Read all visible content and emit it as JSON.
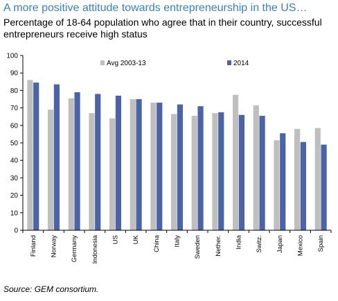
{
  "title": "A more positive attitude towards entrepreneurship in the US…",
  "subtitle": "Percentage of 18-64 population who agree that in their country, successful entrepreneurs receive high status",
  "source": "Source:  GEM consortium.",
  "colors": {
    "avg": "#bfbfbf",
    "y2014": "#4a64a6",
    "axis": "#000000"
  },
  "chart_data": {
    "type": "bar",
    "categories": [
      "Finland",
      "Norway",
      "Germany",
      "Indonesia",
      "US",
      "UK",
      "China",
      "Italy",
      "Sweden",
      "Nether.",
      "India",
      "Switz.",
      "Japan",
      "Mexico",
      "Spain"
    ],
    "series": [
      {
        "name": "Avg 2003-13",
        "values": [
          86,
          69,
          75.5,
          67,
          64,
          75,
          73,
          66.5,
          65.5,
          67,
          77.5,
          71.5,
          51.5,
          58,
          58.5
        ]
      },
      {
        "name": "2014",
        "values": [
          84.5,
          83.5,
          79,
          78,
          77,
          75,
          73,
          72,
          71,
          67.5,
          66,
          65.5,
          55.5,
          50.5,
          49
        ]
      }
    ],
    "ylim": [
      0,
      100
    ],
    "yticks": [
      0,
      10,
      20,
      30,
      40,
      50,
      60,
      70,
      80,
      90,
      100
    ],
    "legend_position": "top",
    "grid": false
  }
}
